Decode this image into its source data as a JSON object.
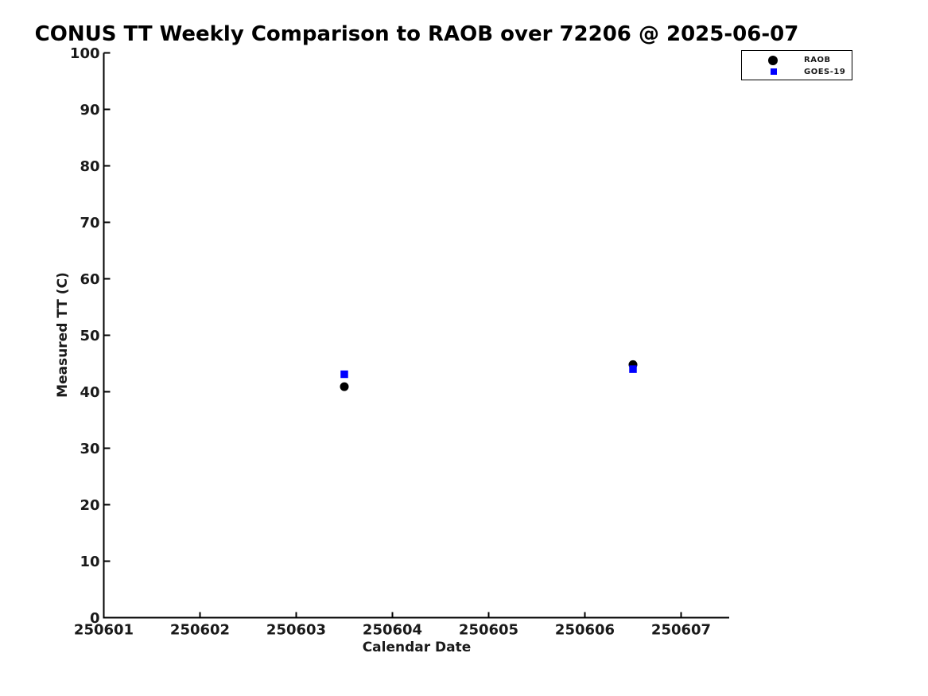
{
  "chart_data": {
    "type": "scatter",
    "title": "CONUS TT Weekly Comparison to RAOB over 72206 @ 2025-06-07",
    "xlabel": "Calendar Date",
    "ylabel": "Measured TT (C)",
    "xlim": [
      250601,
      250607.5
    ],
    "ylim": [
      0,
      100
    ],
    "x_ticks": [
      250601,
      250602,
      250603,
      250604,
      250605,
      250606,
      250607
    ],
    "y_ticks": [
      0,
      10,
      20,
      30,
      40,
      50,
      60,
      70,
      80,
      90,
      100
    ],
    "grid": false,
    "axis_color": "#000000",
    "legend": {
      "position": "upper-right",
      "entries": [
        {
          "label": "RAOB",
          "marker": "circle",
          "color": "#000000"
        },
        {
          "label": "GOES-19",
          "marker": "square",
          "color": "#0000ff"
        }
      ]
    },
    "series": [
      {
        "name": "RAOB",
        "marker": "circle",
        "color": "#000000",
        "x": [
          250603.5,
          250606.5
        ],
        "y": [
          40.9,
          44.8
        ]
      },
      {
        "name": "GOES-19",
        "marker": "square",
        "color": "#0000ff",
        "x": [
          250603.5,
          250606.5
        ],
        "y": [
          43.1,
          44.0
        ]
      }
    ]
  }
}
